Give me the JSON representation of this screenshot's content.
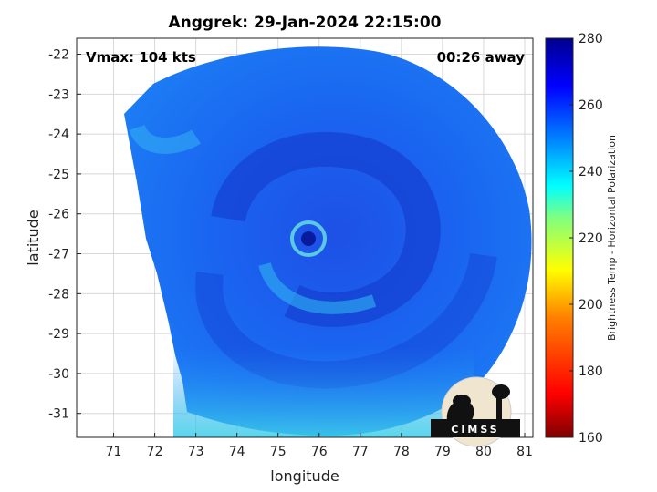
{
  "chart_data": {
    "type": "heatmap",
    "title": "Anggrek: 29-Jan-2024 22:15:00",
    "xlabel": "longitude",
    "ylabel": "latitude",
    "xlim": [
      70.1,
      81.2
    ],
    "ylim": [
      -31.6,
      -21.6
    ],
    "xticks": [
      71,
      72,
      73,
      74,
      75,
      76,
      77,
      78,
      79,
      80,
      81
    ],
    "yticks": [
      -22,
      -23,
      -24,
      -25,
      -26,
      -27,
      -28,
      -29,
      -30,
      -31
    ],
    "grid": true,
    "annotations": {
      "vmax": "Vmax: 104 kts",
      "time_away": "00:26 away"
    },
    "storm_center": {
      "lon": 75.6,
      "lat": -26.6
    },
    "colorbar": {
      "label": "Brightness Temp - Horizontal Polarization",
      "range": [
        160,
        280
      ],
      "ticks": [
        160,
        180,
        200,
        220,
        240,
        260,
        280
      ],
      "colors": [
        "#800000",
        "#ff0000",
        "#ff8000",
        "#ffff00",
        "#80ff80",
        "#00ffff",
        "#0080ff",
        "#0000ff",
        "#00008f"
      ]
    }
  },
  "logo": {
    "text": "CIMSS"
  }
}
